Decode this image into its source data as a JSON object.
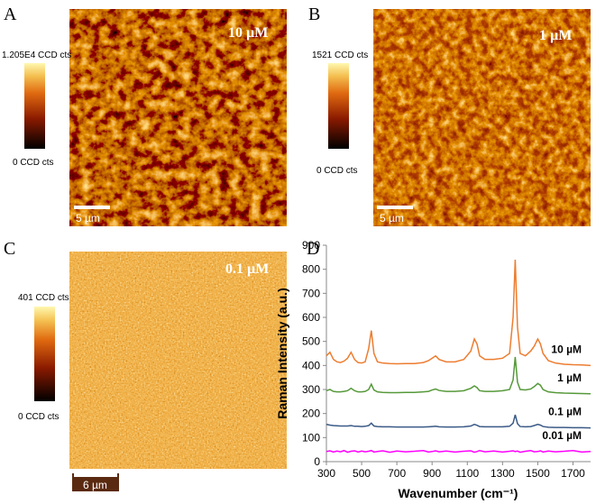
{
  "panels": [
    {
      "label": "A",
      "concentration": "10 µM",
      "scale_max": "1.205E4 CCD cts",
      "scale_min": "0 CCD cts",
      "scale_bar": "5 µm"
    },
    {
      "label": "B",
      "concentration": "1 µM",
      "scale_max": "1521 CCD cts",
      "scale_min": "0 CCD cts",
      "scale_bar": "5 µm"
    },
    {
      "label": "C",
      "concentration": "0.1 µM",
      "scale_max": "401 CCD cts",
      "scale_min": "0 CCD cts",
      "scale_bar": "6 µm"
    }
  ],
  "chart_data": {
    "type": "line",
    "label": "D",
    "x_label": "Wavenumber (cm⁻¹)",
    "y_label": "Raman Intensity (a.u.)",
    "xlim": [
      300,
      1800
    ],
    "xticks": [
      300,
      500,
      700,
      900,
      1100,
      1300,
      1500,
      1700
    ],
    "ylim": [
      0,
      900
    ],
    "yticks": [
      0,
      100,
      200,
      300,
      400,
      500,
      600,
      700,
      800,
      900
    ],
    "x": [
      300,
      320,
      340,
      360,
      380,
      400,
      420,
      440,
      460,
      480,
      500,
      520,
      540,
      555,
      570,
      590,
      620,
      660,
      700,
      750,
      800,
      850,
      880,
      900,
      920,
      940,
      980,
      1030,
      1080,
      1120,
      1140,
      1155,
      1170,
      1200,
      1250,
      1300,
      1340,
      1360,
      1372,
      1385,
      1400,
      1430,
      1460,
      1480,
      1500,
      1515,
      1530,
      1560,
      1600,
      1650,
      1700,
      1750,
      1800
    ],
    "series": [
      {
        "name": "10 µM",
        "color": "#ed7d31",
        "values": [
          440,
          455,
          425,
          415,
          412,
          418,
          430,
          455,
          425,
          412,
          410,
          415,
          470,
          545,
          450,
          415,
          410,
          408,
          407,
          408,
          408,
          412,
          420,
          430,
          440,
          425,
          415,
          415,
          425,
          460,
          510,
          490,
          440,
          425,
          425,
          430,
          450,
          600,
          840,
          560,
          450,
          440,
          460,
          480,
          510,
          490,
          450,
          420,
          410,
          405,
          403,
          402,
          400
        ]
      },
      {
        "name": "1 µM",
        "color": "#56993a",
        "values": [
          295,
          300,
          292,
          290,
          290,
          292,
          295,
          305,
          295,
          290,
          290,
          292,
          300,
          322,
          298,
          290,
          288,
          287,
          287,
          288,
          288,
          290,
          292,
          298,
          302,
          296,
          292,
          292,
          295,
          305,
          315,
          308,
          295,
          292,
          292,
          295,
          300,
          340,
          435,
          330,
          300,
          298,
          302,
          312,
          325,
          318,
          300,
          290,
          287,
          285,
          284,
          283,
          282
        ]
      },
      {
        "name": "0.1 µM",
        "color": "#3a5a86",
        "values": [
          155,
          152,
          150,
          149,
          148,
          148,
          148,
          150,
          147,
          147,
          146,
          147,
          150,
          160,
          148,
          146,
          145,
          145,
          144,
          144,
          144,
          144,
          145,
          146,
          147,
          145,
          144,
          144,
          145,
          148,
          155,
          151,
          146,
          145,
          145,
          145,
          147,
          160,
          195,
          158,
          146,
          145,
          146,
          150,
          155,
          152,
          146,
          143,
          142,
          142,
          141,
          141,
          140
        ]
      },
      {
        "name": "0.01 µM",
        "color": "#ff00ff",
        "values": [
          42,
          45,
          40,
          44,
          41,
          46,
          39,
          43,
          45,
          40,
          44,
          41,
          43,
          46,
          40,
          42,
          45,
          39,
          44,
          41,
          43,
          46,
          40,
          42,
          45,
          41,
          44,
          40,
          43,
          45,
          39,
          42,
          46,
          41,
          44,
          40,
          43,
          45,
          42,
          44,
          39,
          43,
          46,
          41,
          42,
          45,
          40,
          44,
          41,
          43,
          46,
          40,
          42
        ]
      }
    ]
  }
}
